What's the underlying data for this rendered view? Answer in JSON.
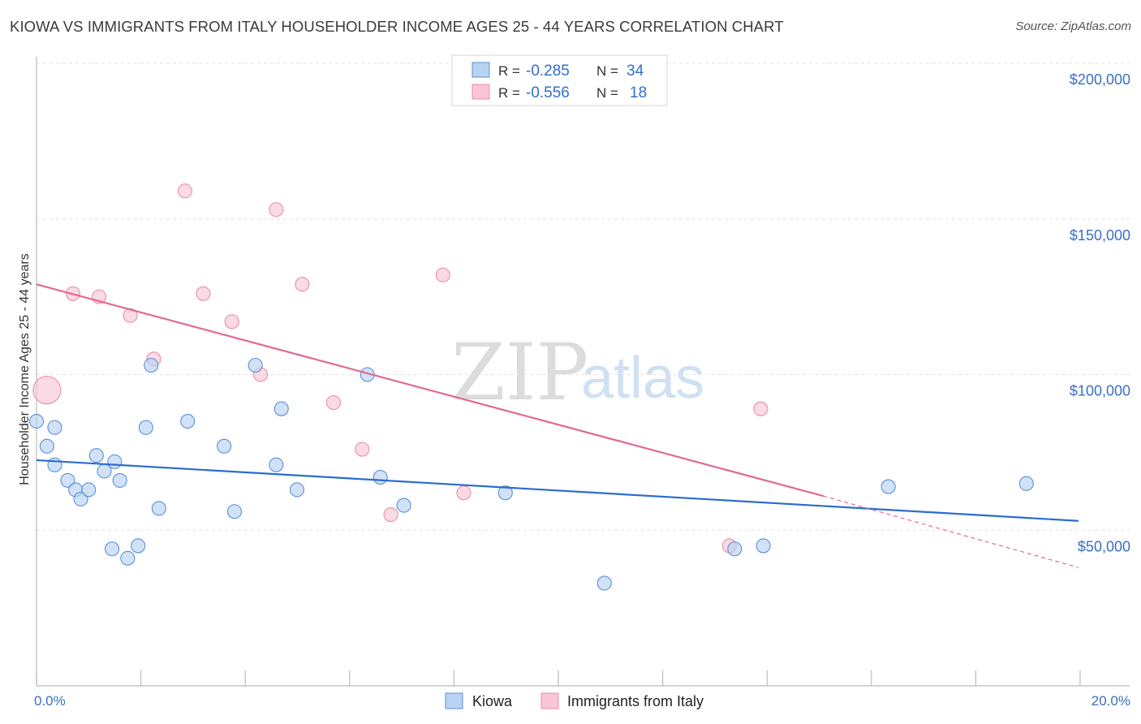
{
  "title": "KIOWA VS IMMIGRANTS FROM ITALY HOUSEHOLDER INCOME AGES 25 - 44 YEARS CORRELATION CHART",
  "source": "Source: ZipAtlas.com",
  "watermark": {
    "zip": "ZIP",
    "atlas": "atlas"
  },
  "chart_data": {
    "type": "scatter",
    "xlabel": "",
    "ylabel": "Householder Income Ages 25 - 44 years",
    "xlim": [
      0,
      20
    ],
    "ylim": [
      0,
      200000
    ],
    "x_tick_labels": {
      "min": "0.0%",
      "max": "20.0%"
    },
    "y_ticks": [
      {
        "value": 200000,
        "label": "$200,000"
      },
      {
        "value": 150000,
        "label": "$150,000"
      },
      {
        "value": 100000,
        "label": "$100,000"
      },
      {
        "value": 50000,
        "label": "$50,000"
      }
    ],
    "legend_stats": [
      {
        "r_label": "R =",
        "r_value": "-0.285",
        "n_label": "N =",
        "n_value": "34"
      },
      {
        "r_label": "R =",
        "r_value": "-0.556",
        "n_label": "N =",
        "n_value": "18"
      }
    ],
    "series": [
      {
        "name": "Kiowa",
        "color": "#5b8fd6",
        "fill": "#b9d3f2",
        "line_color": "#2a6dcc",
        "trend": {
          "x0": 0.0,
          "y0": 72500,
          "x1": 20.0,
          "y1": 53000
        },
        "points": [
          [
            0.0,
            85000
          ],
          [
            0.2,
            77000
          ],
          [
            0.35,
            83000
          ],
          [
            0.35,
            71000
          ],
          [
            0.6,
            66000
          ],
          [
            0.75,
            63000
          ],
          [
            0.85,
            60000
          ],
          [
            1.0,
            63000
          ],
          [
            1.15,
            74000
          ],
          [
            1.3,
            69000
          ],
          [
            1.45,
            44000
          ],
          [
            1.5,
            72000
          ],
          [
            1.6,
            66000
          ],
          [
            1.75,
            41000
          ],
          [
            1.95,
            45000
          ],
          [
            2.1,
            83000
          ],
          [
            2.2,
            103000
          ],
          [
            2.35,
            57000
          ],
          [
            2.9,
            85000
          ],
          [
            3.6,
            77000
          ],
          [
            3.8,
            56000
          ],
          [
            4.2,
            103000
          ],
          [
            4.6,
            71000
          ],
          [
            4.7,
            89000
          ],
          [
            5.0,
            63000
          ],
          [
            6.35,
            100000
          ],
          [
            6.6,
            67000
          ],
          [
            7.05,
            58000
          ],
          [
            9.0,
            62000
          ],
          [
            10.9,
            33000
          ],
          [
            13.4,
            44000
          ],
          [
            13.95,
            45000
          ],
          [
            16.35,
            64000
          ],
          [
            19.0,
            65000
          ]
        ]
      },
      {
        "name": "Immigrants from Italy",
        "color": "#ea8fa8",
        "fill": "#f8c6d4",
        "line_color": "#e06a92",
        "trend": {
          "x0": 0.0,
          "y0": 129000,
          "x1": 15.1,
          "y1": 61000
        },
        "trend_extension": {
          "x0": 15.1,
          "y0": 61000,
          "x1": 20.0,
          "y1": 38000
        },
        "points": [
          [
            0.2,
            95000,
            "big"
          ],
          [
            0.7,
            126000
          ],
          [
            1.2,
            125000
          ],
          [
            1.8,
            119000
          ],
          [
            2.25,
            105000
          ],
          [
            2.85,
            159000
          ],
          [
            3.2,
            126000
          ],
          [
            3.75,
            117000
          ],
          [
            4.3,
            100000
          ],
          [
            4.6,
            153000
          ],
          [
            5.1,
            129000
          ],
          [
            5.7,
            91000
          ],
          [
            6.25,
            76000
          ],
          [
            6.8,
            55000
          ],
          [
            7.8,
            132000
          ],
          [
            8.2,
            62000
          ],
          [
            13.3,
            45000
          ],
          [
            13.9,
            89000
          ]
        ]
      }
    ]
  }
}
